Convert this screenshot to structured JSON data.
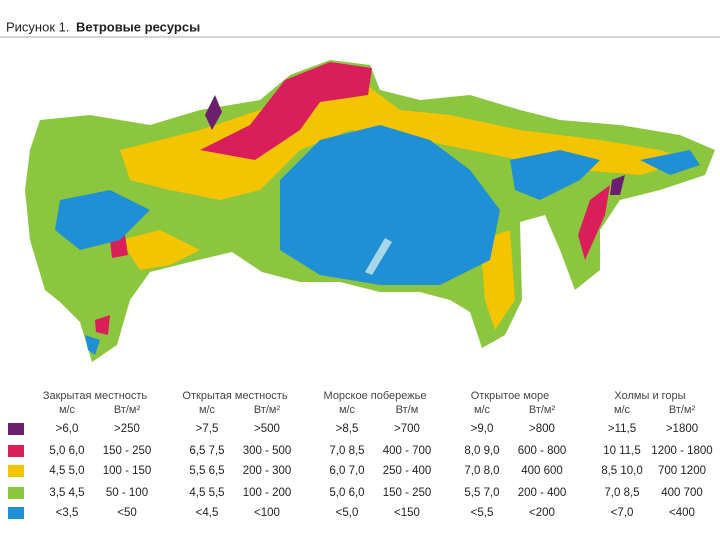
{
  "header": {
    "label": "Рисунок 1.",
    "title": "Ветровые ресурсы"
  },
  "legend": {
    "groups": [
      {
        "name": "Закрытая местность",
        "units": [
          "м/с",
          "Вт/м²"
        ]
      },
      {
        "name": "Открытая местность",
        "units": [
          "м/с",
          "Вт/м²"
        ]
      },
      {
        "name": "Морское побережье",
        "units": [
          "м/с",
          "Вт/м"
        ]
      },
      {
        "name": "Открытое море",
        "units": [
          "м/с",
          "Вт/м²"
        ]
      },
      {
        "name": "Холмы и горы",
        "units": [
          "м/с",
          "Вт/м²"
        ]
      }
    ],
    "rows": [
      {
        "color": "#6b1f6e",
        "cells": [
          [
            ">6,0",
            ">250"
          ],
          [
            ">7,5",
            ">500"
          ],
          [
            ">8,5",
            ">700"
          ],
          [
            ">9,0",
            ">800"
          ],
          [
            ">11,5",
            ">1800"
          ]
        ]
      },
      {
        "color": "#d91e5b",
        "cells": [
          [
            "5,0 6,0",
            "150 - 250"
          ],
          [
            "6,5 7,5",
            "300 - 500"
          ],
          [
            "7,0 8,5",
            "400 - 700"
          ],
          [
            "8,0 9,0",
            "600 - 800"
          ],
          [
            "10 11,5",
            "1200 - 1800"
          ]
        ]
      },
      {
        "color": "#f5c400",
        "cells": [
          [
            "4,5 5,0",
            "100 - 150"
          ],
          [
            "5,5 6,5",
            "200 - 300"
          ],
          [
            "6,0 7,0",
            "250 - 400"
          ],
          [
            "7,0 8,0",
            "400 600"
          ],
          [
            "8,5 10,0",
            "700 1200"
          ]
        ]
      },
      {
        "color": "#8cc63f",
        "cells": [
          [
            "3,5 4,5",
            "50 - 100"
          ],
          [
            "4,5 5,5",
            "100 - 200"
          ],
          [
            "5,0 6,0",
            "150 - 250"
          ],
          [
            "5,5 7,0",
            "200 - 400"
          ],
          [
            "7,0 8,5",
            "400 700"
          ]
        ]
      },
      {
        "color": "#1f8fd6",
        "cells": [
          [
            "<3,5",
            "<50"
          ],
          [
            "<4,5",
            "<100"
          ],
          [
            "<5,0",
            "<150"
          ],
          [
            "<5,5",
            "<200"
          ],
          [
            "<7,0",
            "<400"
          ]
        ]
      }
    ]
  }
}
